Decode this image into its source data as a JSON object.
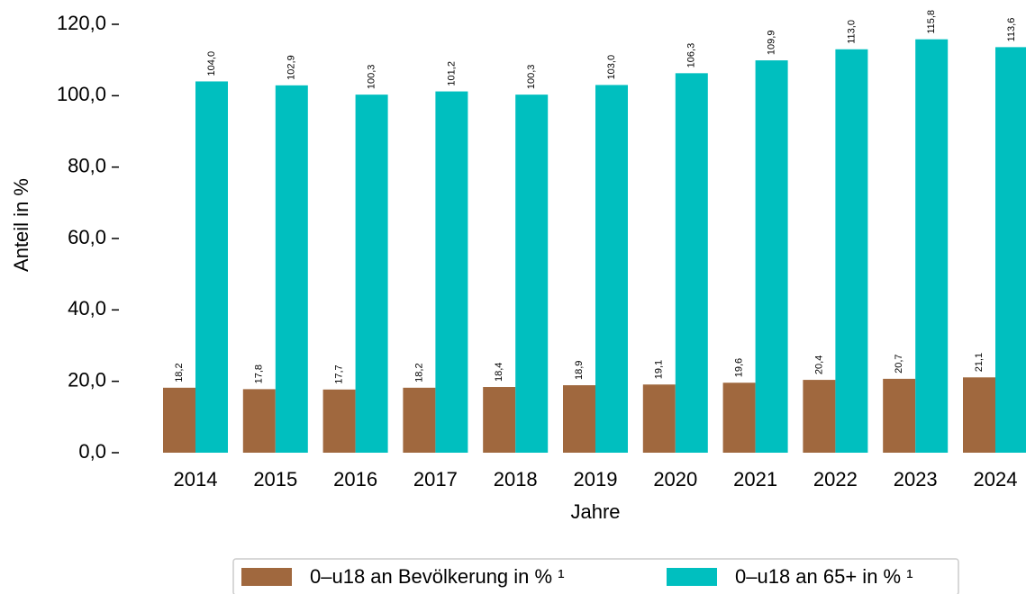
{
  "chart_data": {
    "type": "bar",
    "x_label": "Jahre",
    "y_label": "Anteil in %",
    "categories": [
      "2014",
      "2015",
      "2016",
      "2017",
      "2018",
      "2019",
      "2020",
      "2021",
      "2022",
      "2023",
      "2024"
    ],
    "series": [
      {
        "name": "0–u18 an Bevölkerung in % ¹",
        "color": "#a0683e",
        "values": [
          18.2,
          17.8,
          17.7,
          18.2,
          18.4,
          18.9,
          19.1,
          19.6,
          20.4,
          20.7,
          21.1
        ],
        "value_labels": [
          "18,2",
          "17,8",
          "17,7",
          "18,2",
          "18,4",
          "18,9",
          "19,1",
          "19,6",
          "20,4",
          "20,7",
          "21,1"
        ]
      },
      {
        "name": "0–u18 an 65+ in % ¹",
        "color": "#00bfbf",
        "values": [
          104.0,
          102.9,
          100.3,
          101.2,
          100.3,
          103.0,
          106.3,
          109.9,
          113.0,
          115.8,
          113.6
        ],
        "value_labels": [
          "104,0",
          "102,9",
          "100,3",
          "101,2",
          "100,3",
          "103,0",
          "106,3",
          "109,9",
          "113,0",
          "115,8",
          "113,6"
        ]
      }
    ],
    "ylim": [
      0,
      120
    ],
    "yticks": [
      {
        "value": 0,
        "label": "0,0"
      },
      {
        "value": 20,
        "label": "20,0"
      },
      {
        "value": 40,
        "label": "40,0"
      },
      {
        "value": 60,
        "label": "60,0"
      },
      {
        "value": 80,
        "label": "80,0"
      },
      {
        "value": 100,
        "label": "100,0"
      },
      {
        "value": 120,
        "label": "120,0"
      }
    ],
    "grid": false,
    "legend": "bottom"
  }
}
